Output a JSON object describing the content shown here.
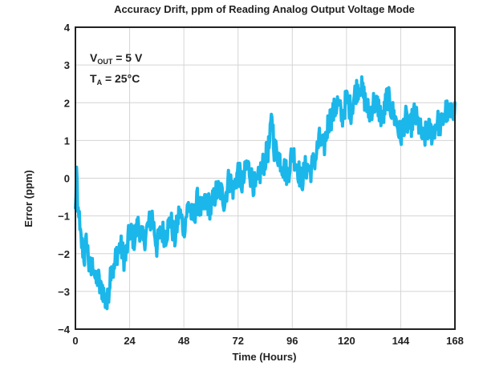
{
  "chart_data": {
    "type": "line",
    "title": "Accuracy Drift, ppm of Reading Analog Output Voltage Mode",
    "xlabel": "Time (Hours)",
    "ylabel": "Error (ppm)",
    "xlim": [
      0,
      168
    ],
    "ylim": [
      -4,
      4
    ],
    "xticks": [
      0,
      24,
      48,
      72,
      96,
      120,
      144,
      168
    ],
    "yticks": [
      -4,
      -3,
      -2,
      -1,
      0,
      1,
      2,
      3,
      4
    ],
    "yticklabels": [
      "−4",
      "−3",
      "−2",
      "−1",
      "0",
      "1",
      "2",
      "3",
      "4"
    ],
    "grid": true,
    "line_color": "#1bb7ea",
    "annotations": {
      "vout": {
        "main": "V",
        "sub": "OUT",
        "rest": " = 5 V"
      },
      "ta": {
        "main": "T",
        "sub": "A",
        "rest": " = 25°C"
      }
    },
    "series": [
      {
        "x": [
          0,
          0.5,
          1,
          1.5,
          2,
          3,
          4,
          5,
          6,
          7,
          8,
          9,
          10,
          11,
          12,
          13,
          14,
          15,
          16,
          17,
          18,
          20,
          22,
          24,
          26,
          28,
          30,
          32,
          34,
          36,
          38,
          40,
          42,
          44,
          46,
          48,
          50,
          52,
          54,
          56,
          58,
          60,
          62,
          64,
          66,
          68,
          70,
          72,
          74,
          76,
          78,
          80,
          82,
          84,
          86,
          87,
          88,
          90,
          92,
          94,
          96,
          98,
          100,
          102,
          104,
          106,
          108,
          110,
          112,
          114,
          116,
          118,
          120,
          122,
          124,
          126,
          128,
          130,
          132,
          134,
          136,
          138,
          140,
          142,
          144,
          146,
          148,
          150,
          152,
          154,
          156,
          158,
          160,
          162,
          164,
          166,
          168
        ],
        "y": [
          -0.9,
          0.2,
          -1.0,
          -0.8,
          -1.5,
          -1.8,
          -2.1,
          -1.6,
          -2.3,
          -2.5,
          -2.2,
          -2.8,
          -2.6,
          -3.0,
          -2.9,
          -3.2,
          -3.4,
          -2.8,
          -2.2,
          -2.5,
          -2.0,
          -1.8,
          -2.2,
          -1.4,
          -1.6,
          -1.2,
          -1.7,
          -1.3,
          -1.0,
          -1.8,
          -1.4,
          -1.5,
          -1.1,
          -1.6,
          -0.9,
          -1.3,
          -0.7,
          -1.1,
          -0.6,
          -0.9,
          -0.6,
          -0.8,
          -0.4,
          -0.3,
          -0.6,
          0.0,
          -0.3,
          0.2,
          -0.2,
          0.4,
          0.0,
          -0.3,
          0.2,
          0.5,
          0.9,
          1.7,
          0.8,
          0.6,
          0.3,
          0.1,
          0.7,
          0.4,
          -0.1,
          0.3,
          0.2,
          0.5,
          1.0,
          0.8,
          1.5,
          1.7,
          2.0,
          1.6,
          2.1,
          1.8,
          2.3,
          2.5,
          2.1,
          1.7,
          2.0,
          1.9,
          1.5,
          2.2,
          1.8,
          1.5,
          1.1,
          1.6,
          1.3,
          1.7,
          1.4,
          1.0,
          1.3,
          1.2,
          1.5,
          1.4,
          1.8,
          1.6,
          2.0
        ]
      }
    ]
  }
}
